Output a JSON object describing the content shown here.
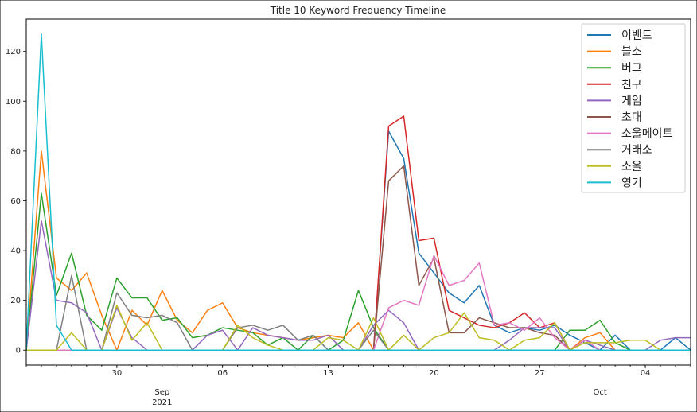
{
  "chart_data": {
    "type": "line",
    "title": "Title 10 Keyword Frequency Timeline",
    "xlabel": "",
    "ylabel": "",
    "x_start": "2021-08-24",
    "x_end": "2021-10-07",
    "x_ticks": [
      {
        "date": "2021-08-30",
        "label": "30"
      },
      {
        "date": "2021-09-06",
        "label": "06"
      },
      {
        "date": "2021-09-13",
        "label": "13"
      },
      {
        "date": "2021-09-20",
        "label": "20"
      },
      {
        "date": "2021-09-27",
        "label": "27"
      },
      {
        "date": "2021-10-04",
        "label": "04"
      }
    ],
    "x_month_labels": [
      {
        "date": "2021-09-02",
        "label": "Sep",
        "sublabel": "2021"
      },
      {
        "date": "2021-10-01",
        "label": "Oct",
        "sublabel": ""
      }
    ],
    "y_ticks": [
      0,
      20,
      40,
      60,
      80,
      100,
      120
    ],
    "ylim": [
      -6,
      133
    ],
    "legend_position": "top-right",
    "x": [
      "2021-08-24",
      "2021-08-25",
      "2021-08-26",
      "2021-08-27",
      "2021-08-28",
      "2021-08-29",
      "2021-08-30",
      "2021-08-31",
      "2021-09-01",
      "2021-09-02",
      "2021-09-03",
      "2021-09-04",
      "2021-09-05",
      "2021-09-06",
      "2021-09-07",
      "2021-09-08",
      "2021-09-09",
      "2021-09-10",
      "2021-09-11",
      "2021-09-12",
      "2021-09-13",
      "2021-09-14",
      "2021-09-15",
      "2021-09-16",
      "2021-09-17",
      "2021-09-18",
      "2021-09-19",
      "2021-09-20",
      "2021-09-21",
      "2021-09-22",
      "2021-09-23",
      "2021-09-24",
      "2021-09-25",
      "2021-09-26",
      "2021-09-27",
      "2021-09-28",
      "2021-09-29",
      "2021-09-30",
      "2021-10-01",
      "2021-10-02",
      "2021-10-03",
      "2021-10-04",
      "2021-10-05",
      "2021-10-06",
      "2021-10-07"
    ],
    "series": [
      {
        "name": "이벤트",
        "color": "#1f77b4",
        "values": [
          0,
          0,
          0,
          0,
          0,
          0,
          0,
          0,
          0,
          0,
          0,
          0,
          0,
          0,
          0,
          0,
          0,
          0,
          0,
          0,
          0,
          0,
          0,
          0,
          88,
          77,
          39,
          31,
          23,
          19,
          26,
          10,
          7,
          9,
          8,
          10,
          6,
          3,
          0,
          6,
          0,
          0,
          0,
          5,
          0
        ]
      },
      {
        "name": "블소",
        "color": "#ff7f0e",
        "values": [
          0,
          80,
          29,
          24,
          31,
          14,
          0,
          16,
          10,
          24,
          12,
          7,
          16,
          19,
          9,
          7,
          6,
          5,
          4,
          5,
          6,
          5,
          11,
          0,
          0,
          0,
          0,
          0,
          0,
          0,
          0,
          0,
          0,
          0,
          0,
          0,
          0,
          5,
          7,
          0,
          0,
          0,
          0,
          0,
          0
        ]
      },
      {
        "name": "버그",
        "color": "#2ca02c",
        "values": [
          0,
          63,
          22,
          39,
          14,
          8,
          29,
          21,
          21,
          12,
          13,
          5,
          6,
          9,
          8,
          7,
          2,
          5,
          0,
          6,
          0,
          4,
          24,
          9,
          0,
          0,
          0,
          0,
          0,
          0,
          0,
          0,
          0,
          0,
          0,
          0,
          8,
          8,
          12,
          3,
          0,
          0,
          0,
          0,
          0
        ]
      },
      {
        "name": "친구",
        "color": "#d62728",
        "values": [
          0,
          0,
          0,
          0,
          0,
          0,
          0,
          0,
          0,
          0,
          0,
          0,
          0,
          0,
          0,
          0,
          0,
          0,
          0,
          0,
          0,
          0,
          0,
          0,
          90,
          94,
          44,
          45,
          16,
          13,
          10,
          9,
          11,
          15,
          9,
          11,
          0,
          0,
          0,
          0,
          0,
          0,
          0,
          0,
          0
        ]
      },
      {
        "name": "게임",
        "color": "#9467bd",
        "values": [
          0,
          52,
          20,
          19,
          15,
          0,
          17,
          5,
          0,
          0,
          0,
          0,
          6,
          8,
          0,
          9,
          6,
          5,
          4,
          4,
          6,
          0,
          0,
          10,
          16,
          11,
          0,
          0,
          0,
          0,
          0,
          0,
          4,
          9,
          9,
          9,
          0,
          4,
          2,
          0,
          0,
          0,
          4,
          5,
          5
        ]
      },
      {
        "name": "초대",
        "color": "#8c564b",
        "values": [
          0,
          0,
          0,
          0,
          0,
          0,
          0,
          0,
          0,
          0,
          0,
          0,
          0,
          0,
          0,
          0,
          0,
          0,
          0,
          0,
          0,
          0,
          0,
          0,
          68,
          74,
          26,
          37,
          7,
          7,
          13,
          11,
          9,
          9,
          7,
          6,
          0,
          0,
          0,
          0,
          0,
          0,
          0,
          0,
          0
        ]
      },
      {
        "name": "소울메이트",
        "color": "#e377c2",
        "values": [
          0,
          0,
          0,
          0,
          0,
          0,
          0,
          0,
          0,
          0,
          0,
          0,
          0,
          0,
          0,
          0,
          0,
          0,
          0,
          0,
          0,
          0,
          0,
          0,
          17,
          20,
          18,
          38,
          26,
          28,
          35,
          10,
          11,
          8,
          13,
          5,
          0,
          4,
          0,
          0,
          0,
          0,
          0,
          0,
          0
        ]
      },
      {
        "name": "거래소",
        "color": "#7f7f7f",
        "values": [
          0,
          0,
          0,
          30,
          0,
          0,
          23,
          14,
          13,
          14,
          11,
          0,
          0,
          0,
          9,
          10,
          8,
          10,
          4,
          6,
          0,
          0,
          0,
          8,
          0,
          0,
          0,
          0,
          0,
          0,
          0,
          0,
          0,
          0,
          0,
          0,
          0,
          0,
          0,
          0,
          0,
          0,
          0,
          0,
          0
        ]
      },
      {
        "name": "소울",
        "color": "#bcbd22",
        "values": [
          0,
          0,
          0,
          7,
          0,
          0,
          18,
          4,
          11,
          0,
          0,
          0,
          0,
          0,
          10,
          5,
          2,
          0,
          0,
          0,
          5,
          4,
          0,
          13,
          0,
          6,
          0,
          5,
          7,
          15,
          5,
          4,
          0,
          4,
          5,
          11,
          0,
          3,
          3,
          3,
          4,
          4,
          0,
          0,
          0
        ]
      },
      {
        "name": "영기",
        "color": "#17becf",
        "values": [
          0,
          127,
          10,
          0,
          0,
          0,
          0,
          0,
          0,
          0,
          0,
          0,
          0,
          0,
          0,
          0,
          0,
          0,
          0,
          0,
          0,
          0,
          0,
          0,
          0,
          0,
          0,
          0,
          0,
          0,
          0,
          0,
          0,
          0,
          0,
          0,
          0,
          0,
          0,
          0,
          0,
          0,
          0,
          0,
          0
        ]
      }
    ]
  }
}
